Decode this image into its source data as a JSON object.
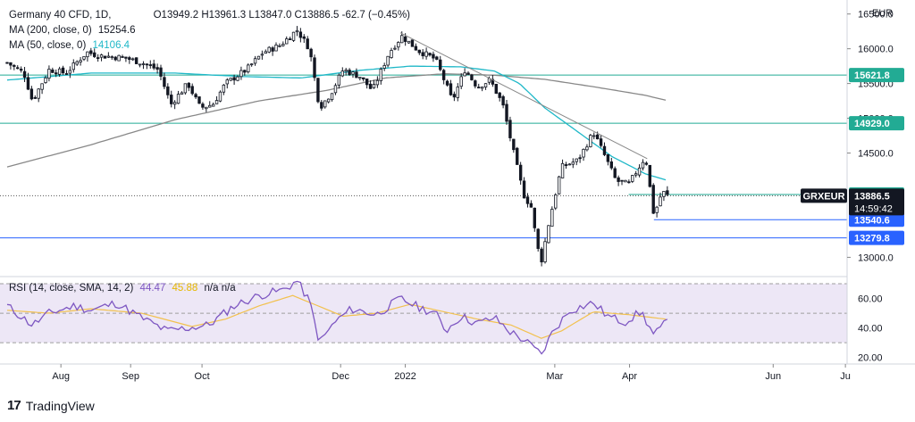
{
  "header": {
    "symbol": "Germany 40 CFD, 1D,",
    "ohlc": "O13949.2 H13961.3 L13847.0 C13886.5 -62.7 (−0.45%)",
    "ma200_label": "MA (200, close, 0)",
    "ma200_value": "15254.6",
    "ma50_label": "MA (50, close, 0)",
    "ma50_value": "14106.4",
    "rsi_label": "RSI (14, close, SMA, 14, 2)",
    "rsi_value": "44.47",
    "rsi_sma_value": "45.88",
    "rsi_na": "n/a n/a"
  },
  "currency": "EUR",
  "branding": {
    "logo": "17",
    "name": "TradingView"
  },
  "colors": {
    "candle": "#131722",
    "ma50": "#1fb8c8",
    "ma200": "#888888",
    "trendline": "#888888",
    "green_level": "#22ab94",
    "blue_level": "#2962ff",
    "rsi": "#7e57c2",
    "rsi_sma": "#f2c14e",
    "rsi_band": "#ede7f6"
  },
  "chart_data": {
    "type": "candlestick",
    "title": "Germany 40 CFD, 1D",
    "price_axis": {
      "ticks": [
        "16500.0",
        "16000.0",
        "15500.0",
        "15000.0",
        "14500.0",
        "13000.0"
      ],
      "ylim": [
        12800,
        16650
      ]
    },
    "time_axis": {
      "ticks": [
        "Aug",
        "Sep",
        "Oct",
        "Dec",
        "2022",
        "Mar",
        "Apr",
        "Jun",
        "Ju"
      ]
    },
    "horizontal_levels": [
      {
        "label": "15621.8",
        "value": 15621.8,
        "color": "green"
      },
      {
        "label": "14929.0",
        "value": 14929.0,
        "color": "green"
      },
      {
        "label": "13903.6",
        "value": 13903.6,
        "color": "green"
      },
      {
        "label": "13540.6",
        "value": 13540.6,
        "color": "blue"
      },
      {
        "label": "13279.8",
        "value": 13279.8,
        "color": "blue"
      }
    ],
    "last_price": {
      "ticker": "GRXEUR",
      "value": "13886.5",
      "countdown": "14:59:42"
    },
    "trendline": {
      "from": [
        0.468,
        16230
      ],
      "to": [
        0.762,
        14420
      ]
    },
    "candle_anchors": [
      [
        0.0,
        15800
      ],
      [
        0.02,
        15650
      ],
      [
        0.03,
        15250
      ],
      [
        0.05,
        15700
      ],
      [
        0.07,
        15650
      ],
      [
        0.095,
        15950
      ],
      [
        0.11,
        15900
      ],
      [
        0.14,
        15870
      ],
      [
        0.16,
        15800
      ],
      [
        0.18,
        15700
      ],
      [
        0.195,
        15200
      ],
      [
        0.215,
        15500
      ],
      [
        0.23,
        15150
      ],
      [
        0.245,
        15200
      ],
      [
        0.26,
        15500
      ],
      [
        0.285,
        15700
      ],
      [
        0.305,
        15950
      ],
      [
        0.325,
        16050
      ],
      [
        0.345,
        16270
      ],
      [
        0.36,
        16000
      ],
      [
        0.372,
        15150
      ],
      [
        0.385,
        15350
      ],
      [
        0.4,
        15700
      ],
      [
        0.42,
        15600
      ],
      [
        0.435,
        15400
      ],
      [
        0.455,
        15950
      ],
      [
        0.47,
        16180
      ],
      [
        0.49,
        15970
      ],
      [
        0.51,
        15850
      ],
      [
        0.522,
        15500
      ],
      [
        0.53,
        15250
      ],
      [
        0.545,
        15700
      ],
      [
        0.56,
        15450
      ],
      [
        0.575,
        15550
      ],
      [
        0.59,
        15200
      ],
      [
        0.605,
        14400
      ],
      [
        0.615,
        13900
      ],
      [
        0.625,
        13700
      ],
      [
        0.63,
        13200
      ],
      [
        0.636,
        12950
      ],
      [
        0.645,
        13500
      ],
      [
        0.66,
        14300
      ],
      [
        0.68,
        14400
      ],
      [
        0.698,
        14800
      ],
      [
        0.71,
        14500
      ],
      [
        0.725,
        14100
      ],
      [
        0.74,
        14050
      ],
      [
        0.76,
        14450
      ],
      [
        0.77,
        13600
      ],
      [
        0.78,
        13950
      ],
      [
        0.786,
        13886.5
      ]
    ],
    "ma50_anchors": [
      [
        0.0,
        15550
      ],
      [
        0.1,
        15650
      ],
      [
        0.2,
        15650
      ],
      [
        0.28,
        15600
      ],
      [
        0.35,
        15580
      ],
      [
        0.42,
        15690
      ],
      [
        0.48,
        15750
      ],
      [
        0.54,
        15740
      ],
      [
        0.58,
        15680
      ],
      [
        0.61,
        15500
      ],
      [
        0.64,
        15150
      ],
      [
        0.68,
        14800
      ],
      [
        0.72,
        14450
      ],
      [
        0.76,
        14200
      ],
      [
        0.786,
        14106.4
      ]
    ],
    "ma200_anchors": [
      [
        0.0,
        14300
      ],
      [
        0.1,
        14620
      ],
      [
        0.2,
        14980
      ],
      [
        0.3,
        15250
      ],
      [
        0.38,
        15400
      ],
      [
        0.45,
        15580
      ],
      [
        0.52,
        15640
      ],
      [
        0.58,
        15620
      ],
      [
        0.64,
        15560
      ],
      [
        0.7,
        15450
      ],
      [
        0.76,
        15330
      ],
      [
        0.786,
        15254.6
      ]
    ],
    "rsi_panel": {
      "ticks": [
        "60.00",
        "40.00",
        "20.00"
      ],
      "ylim": [
        18,
        70
      ],
      "upper_band": 70,
      "lower_band": 30,
      "mid": 50,
      "rsi_anchors": [
        [
          0.0,
          55
        ],
        [
          0.03,
          42
        ],
        [
          0.05,
          50
        ],
        [
          0.08,
          55
        ],
        [
          0.1,
          52
        ],
        [
          0.13,
          57
        ],
        [
          0.16,
          47
        ],
        [
          0.19,
          38
        ],
        [
          0.215,
          40
        ],
        [
          0.24,
          42
        ],
        [
          0.27,
          55
        ],
        [
          0.3,
          62
        ],
        [
          0.33,
          66
        ],
        [
          0.345,
          72
        ],
        [
          0.36,
          58
        ],
        [
          0.372,
          30
        ],
        [
          0.39,
          44
        ],
        [
          0.41,
          53
        ],
        [
          0.44,
          49
        ],
        [
          0.468,
          60
        ],
        [
          0.49,
          54
        ],
        [
          0.51,
          50
        ],
        [
          0.522,
          38
        ],
        [
          0.54,
          48
        ],
        [
          0.56,
          43
        ],
        [
          0.58,
          47
        ],
        [
          0.6,
          37
        ],
        [
          0.615,
          32
        ],
        [
          0.636,
          22
        ],
        [
          0.65,
          38
        ],
        [
          0.67,
          52
        ],
        [
          0.698,
          57
        ],
        [
          0.715,
          48
        ],
        [
          0.735,
          44
        ],
        [
          0.755,
          51
        ],
        [
          0.77,
          35
        ],
        [
          0.786,
          44.47
        ]
      ],
      "sma_anchors": [
        [
          0.0,
          52
        ],
        [
          0.05,
          50
        ],
        [
          0.1,
          53
        ],
        [
          0.16,
          50
        ],
        [
          0.22,
          41
        ],
        [
          0.26,
          46
        ],
        [
          0.3,
          55
        ],
        [
          0.34,
          62
        ],
        [
          0.37,
          55
        ],
        [
          0.4,
          48
        ],
        [
          0.44,
          50
        ],
        [
          0.48,
          56
        ],
        [
          0.52,
          51
        ],
        [
          0.56,
          46
        ],
        [
          0.6,
          42
        ],
        [
          0.636,
          33
        ],
        [
          0.66,
          38
        ],
        [
          0.698,
          51
        ],
        [
          0.74,
          49
        ],
        [
          0.786,
          45.88
        ]
      ]
    }
  }
}
